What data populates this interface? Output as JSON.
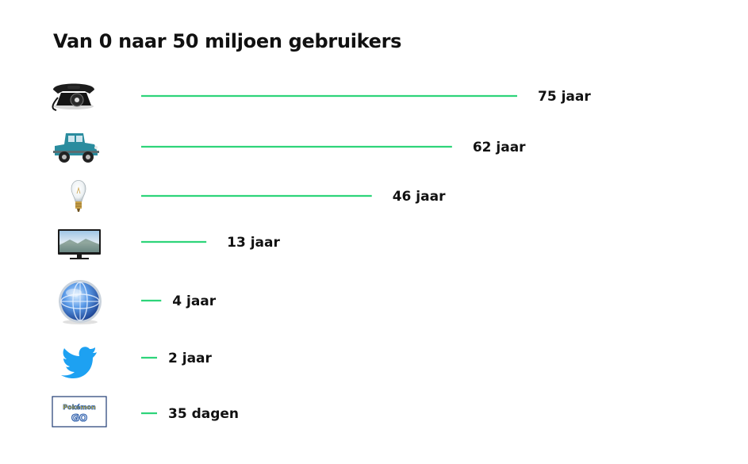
{
  "chart_data": {
    "type": "bar",
    "orientation": "horizontal",
    "title": "Van 0 naar 50 miljoen gebruikers",
    "categories": [
      "telephone-icon",
      "car-icon",
      "lightbulb-icon",
      "television-icon",
      "internet-globe-icon",
      "twitter-icon",
      "pokemon-go-icon"
    ],
    "values_years": [
      75,
      62,
      46,
      13,
      4,
      2,
      0.096
    ],
    "labels": [
      "75 jaar",
      "62 jaar",
      "46 jaar",
      "13 jaar",
      "4 jaar",
      "2 jaar",
      "35 dagen"
    ],
    "bar_color": "#2ed47a",
    "axes_visible": false,
    "grid": false,
    "legend": "none"
  },
  "colors": {
    "accent": "#2ed47a",
    "text": "#111111",
    "twitter_blue": "#1da1f2",
    "car_teal": "#2a8c9e",
    "globe_blue": "#2c64c8"
  }
}
